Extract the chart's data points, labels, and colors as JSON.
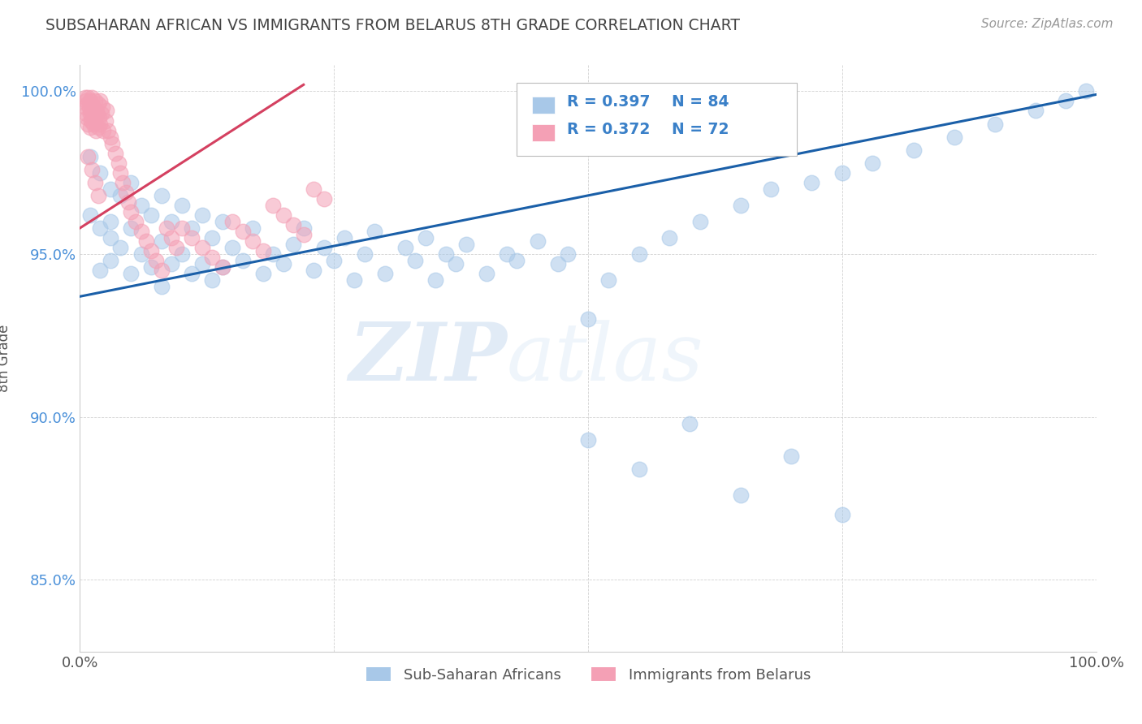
{
  "title": "SUBSAHARAN AFRICAN VS IMMIGRANTS FROM BELARUS 8TH GRADE CORRELATION CHART",
  "source": "Source: ZipAtlas.com",
  "ylabel": "8th Grade",
  "xlim": [
    0.0,
    1.0
  ],
  "ylim": [
    0.828,
    1.008
  ],
  "yticks": [
    0.85,
    0.9,
    0.95,
    1.0
  ],
  "ytick_labels": [
    "85.0%",
    "90.0%",
    "95.0%",
    "100.0%"
  ],
  "xticks": [
    0.0,
    0.25,
    0.5,
    0.75,
    1.0
  ],
  "xtick_labels": [
    "0.0%",
    "",
    "",
    "",
    "100.0%"
  ],
  "blue_R": 0.397,
  "blue_N": 84,
  "pink_R": 0.372,
  "pink_N": 72,
  "blue_color": "#a8c8e8",
  "pink_color": "#f4a0b5",
  "blue_line_color": "#1a5fa8",
  "pink_line_color": "#d44060",
  "legend_label_blue": "Sub-Saharan Africans",
  "legend_label_pink": "Immigrants from Belarus",
  "watermark_zip": "ZIP",
  "watermark_atlas": "atlas",
  "blue_points_x": [
    0.01,
    0.01,
    0.02,
    0.02,
    0.02,
    0.03,
    0.03,
    0.03,
    0.03,
    0.04,
    0.04,
    0.05,
    0.05,
    0.05,
    0.06,
    0.06,
    0.07,
    0.07,
    0.08,
    0.08,
    0.08,
    0.09,
    0.09,
    0.1,
    0.1,
    0.11,
    0.11,
    0.12,
    0.12,
    0.13,
    0.13,
    0.14,
    0.14,
    0.15,
    0.16,
    0.17,
    0.18,
    0.19,
    0.2,
    0.21,
    0.22,
    0.23,
    0.24,
    0.25,
    0.26,
    0.27,
    0.28,
    0.29,
    0.3,
    0.32,
    0.33,
    0.34,
    0.35,
    0.36,
    0.37,
    0.38,
    0.4,
    0.42,
    0.43,
    0.45,
    0.47,
    0.48,
    0.5,
    0.52,
    0.55,
    0.58,
    0.61,
    0.65,
    0.68,
    0.72,
    0.75,
    0.78,
    0.82,
    0.86,
    0.9,
    0.94,
    0.97,
    0.99,
    0.5,
    0.55,
    0.6,
    0.65,
    0.7,
    0.75
  ],
  "blue_points_y": [
    0.98,
    0.962,
    0.975,
    0.958,
    0.945,
    0.97,
    0.955,
    0.948,
    0.96,
    0.968,
    0.952,
    0.972,
    0.958,
    0.944,
    0.965,
    0.95,
    0.962,
    0.946,
    0.968,
    0.954,
    0.94,
    0.96,
    0.947,
    0.965,
    0.95,
    0.958,
    0.944,
    0.962,
    0.947,
    0.955,
    0.942,
    0.96,
    0.946,
    0.952,
    0.948,
    0.958,
    0.944,
    0.95,
    0.947,
    0.953,
    0.958,
    0.945,
    0.952,
    0.948,
    0.955,
    0.942,
    0.95,
    0.957,
    0.944,
    0.952,
    0.948,
    0.955,
    0.942,
    0.95,
    0.947,
    0.953,
    0.944,
    0.95,
    0.948,
    0.954,
    0.947,
    0.95,
    0.93,
    0.942,
    0.95,
    0.955,
    0.96,
    0.965,
    0.97,
    0.972,
    0.975,
    0.978,
    0.982,
    0.986,
    0.99,
    0.994,
    0.997,
    1.0,
    0.893,
    0.884,
    0.898,
    0.876,
    0.888,
    0.87
  ],
  "pink_points_x": [
    0.005,
    0.005,
    0.006,
    0.006,
    0.007,
    0.007,
    0.008,
    0.008,
    0.009,
    0.01,
    0.01,
    0.01,
    0.011,
    0.011,
    0.012,
    0.012,
    0.013,
    0.013,
    0.014,
    0.015,
    0.015,
    0.016,
    0.016,
    0.017,
    0.018,
    0.018,
    0.019,
    0.02,
    0.02,
    0.021,
    0.022,
    0.023,
    0.025,
    0.026,
    0.028,
    0.03,
    0.032,
    0.035,
    0.038,
    0.04,
    0.042,
    0.045,
    0.048,
    0.05,
    0.055,
    0.06,
    0.065,
    0.07,
    0.075,
    0.08,
    0.085,
    0.09,
    0.095,
    0.1,
    0.11,
    0.12,
    0.13,
    0.14,
    0.15,
    0.16,
    0.17,
    0.18,
    0.19,
    0.2,
    0.21,
    0.22,
    0.23,
    0.24,
    0.008,
    0.012,
    0.015,
    0.018
  ],
  "pink_points_y": [
    0.998,
    0.995,
    0.997,
    0.993,
    0.996,
    0.992,
    0.998,
    0.99,
    0.995,
    0.997,
    0.993,
    0.989,
    0.996,
    0.991,
    0.998,
    0.993,
    0.995,
    0.99,
    0.992,
    0.997,
    0.991,
    0.994,
    0.988,
    0.993,
    0.996,
    0.989,
    0.992,
    0.997,
    0.99,
    0.993,
    0.995,
    0.988,
    0.991,
    0.994,
    0.988,
    0.986,
    0.984,
    0.981,
    0.978,
    0.975,
    0.972,
    0.969,
    0.966,
    0.963,
    0.96,
    0.957,
    0.954,
    0.951,
    0.948,
    0.945,
    0.958,
    0.955,
    0.952,
    0.958,
    0.955,
    0.952,
    0.949,
    0.946,
    0.96,
    0.957,
    0.954,
    0.951,
    0.965,
    0.962,
    0.959,
    0.956,
    0.97,
    0.967,
    0.98,
    0.976,
    0.972,
    0.968
  ]
}
